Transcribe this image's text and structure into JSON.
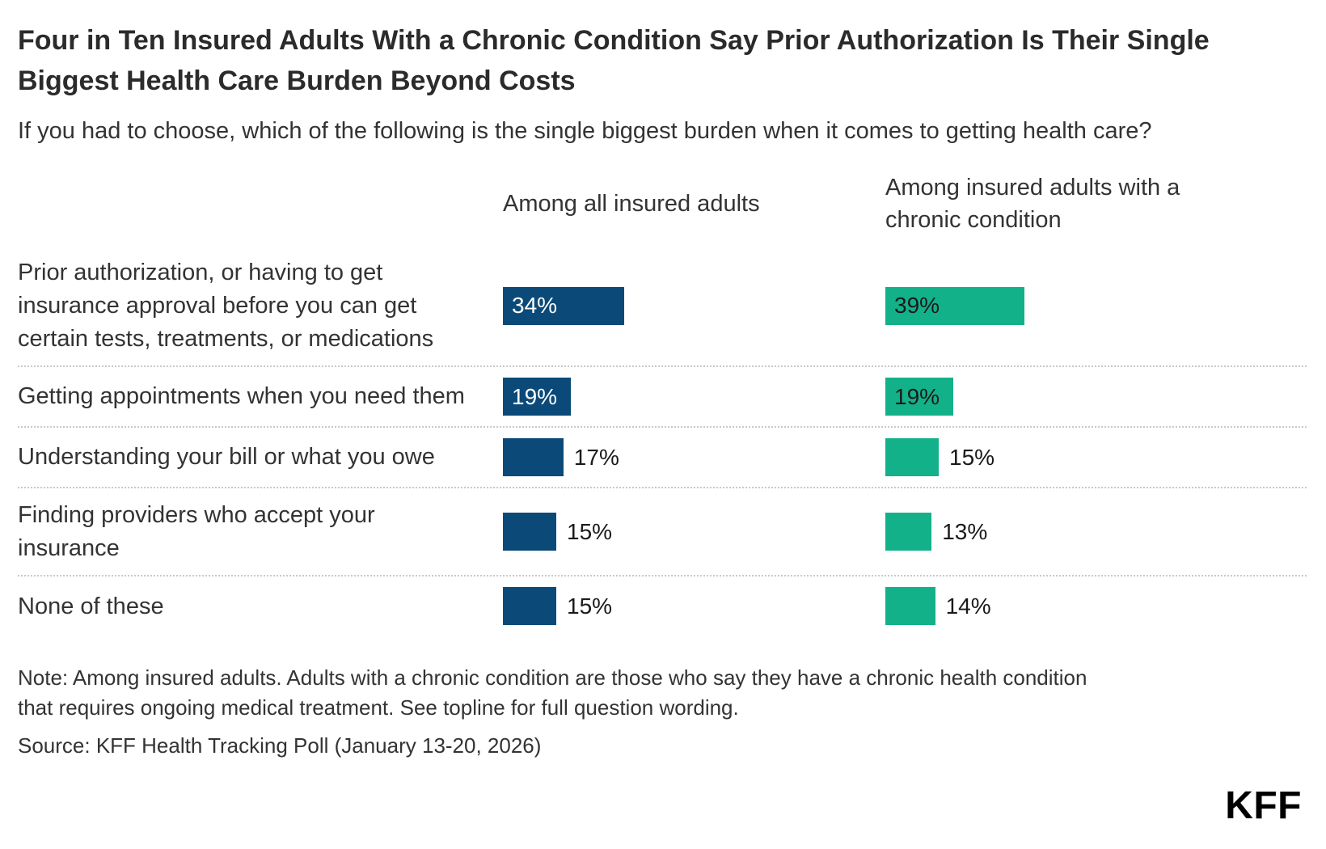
{
  "title": "Four in Ten Insured Adults With a Chronic Condition Say Prior Authorization Is Their Single Biggest Health Care Burden Beyond Costs",
  "subtitle": "If you had to choose, which of the following is the single biggest burden when it comes to getting health care?",
  "columns": {
    "left_header": "Among all insured adults",
    "right_header": "Among insured adults with a chronic condition"
  },
  "chart_data": {
    "type": "bar",
    "orientation": "horizontal",
    "title": "Four in Ten Insured Adults With a Chronic Condition Say Prior Authorization Is Their Single Biggest Health Care Burden Beyond Costs",
    "categories": [
      "Prior authorization, or having to get insurance approval before you can get certain tests, treatments, or medications",
      "Getting appointments when you need them",
      "Understanding your bill or what you owe",
      "Finding providers who accept your insurance",
      "None of these"
    ],
    "series": [
      {
        "name": "Among all insured adults",
        "color": "#0b4a78",
        "label_color_inside": "#ffffff",
        "values": [
          34,
          19,
          17,
          15,
          15
        ]
      },
      {
        "name": "Among insured adults with a chronic condition",
        "color": "#13b189",
        "label_color_inside": "#1a1a1a",
        "values": [
          39,
          19,
          15,
          13,
          14
        ]
      }
    ],
    "value_suffix": "%",
    "xlim": [
      0,
      100
    ],
    "grid": false,
    "legend_position": "column-headers"
  },
  "note": "Note: Among insured adults. Adults with a chronic condition are those who say they have a chronic health condition that requires ongoing medical treatment. See topline for full question wording.",
  "source": "Source: KFF Health Tracking Poll (January 13-20, 2026)",
  "logo": "KFF"
}
